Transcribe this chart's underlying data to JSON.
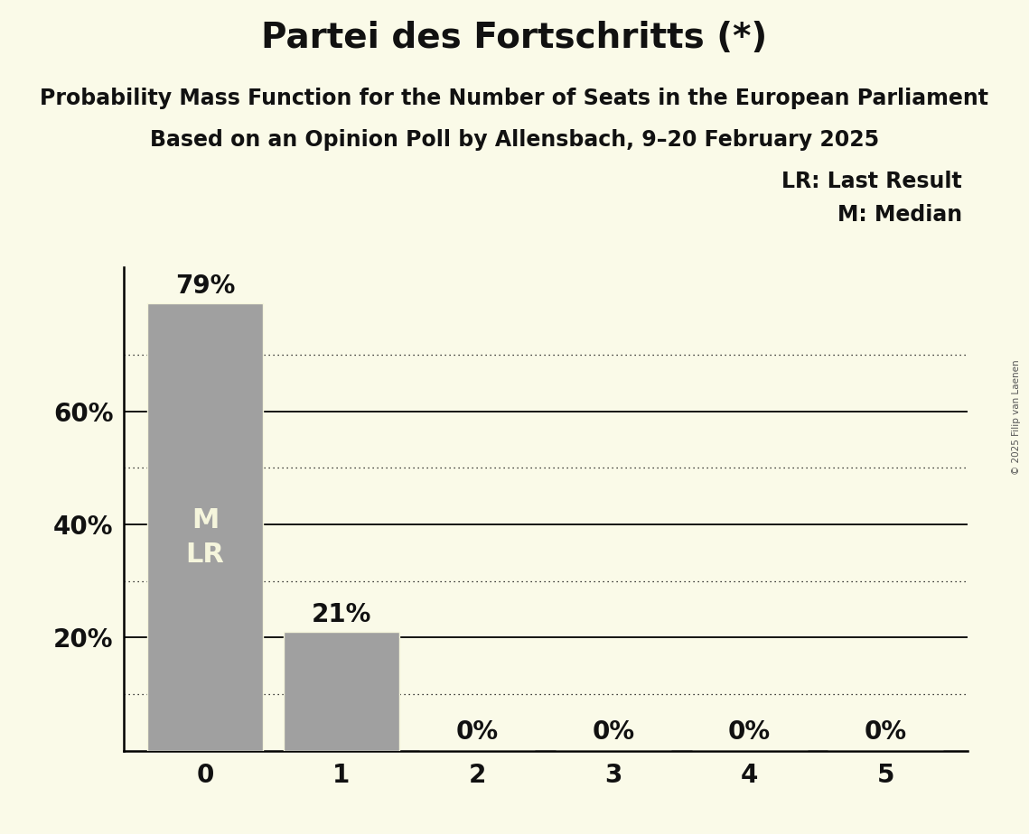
{
  "title": "Partei des Fortschritts (*)",
  "subtitle1": "Probability Mass Function for the Number of Seats in the European Parliament",
  "subtitle2": "Based on an Opinion Poll by Allensbach, 9–20 February 2025",
  "copyright": "© 2025 Filip van Laenen",
  "categories": [
    0,
    1,
    2,
    3,
    4,
    5
  ],
  "values": [
    0.79,
    0.21,
    0.0,
    0.0,
    0.0,
    0.0
  ],
  "bar_color": "#a0a0a0",
  "bar_edge_color": "#f5f5dc",
  "background_color": "#fafae8",
  "text_color": "#111111",
  "label_inside_bar": {
    "bar_index": 0,
    "lines": [
      "M",
      "LR"
    ]
  },
  "legend_text": [
    "LR: Last Result",
    "M: Median"
  ],
  "ylabel_ticks": [
    0.2,
    0.4,
    0.6
  ],
  "ylabel_tick_labels": [
    "20%",
    "40%",
    "60%"
  ],
  "solid_gridlines": [
    0.2,
    0.4,
    0.6
  ],
  "dotted_gridlines": [
    0.1,
    0.3,
    0.5,
    0.7
  ],
  "ylim": [
    0,
    0.855
  ],
  "title_fontsize": 28,
  "subtitle_fontsize": 17,
  "tick_fontsize": 20,
  "bar_label_fontsize": 20,
  "legend_fontsize": 17,
  "inside_label_fontsize": 22,
  "bar_width": 0.85
}
